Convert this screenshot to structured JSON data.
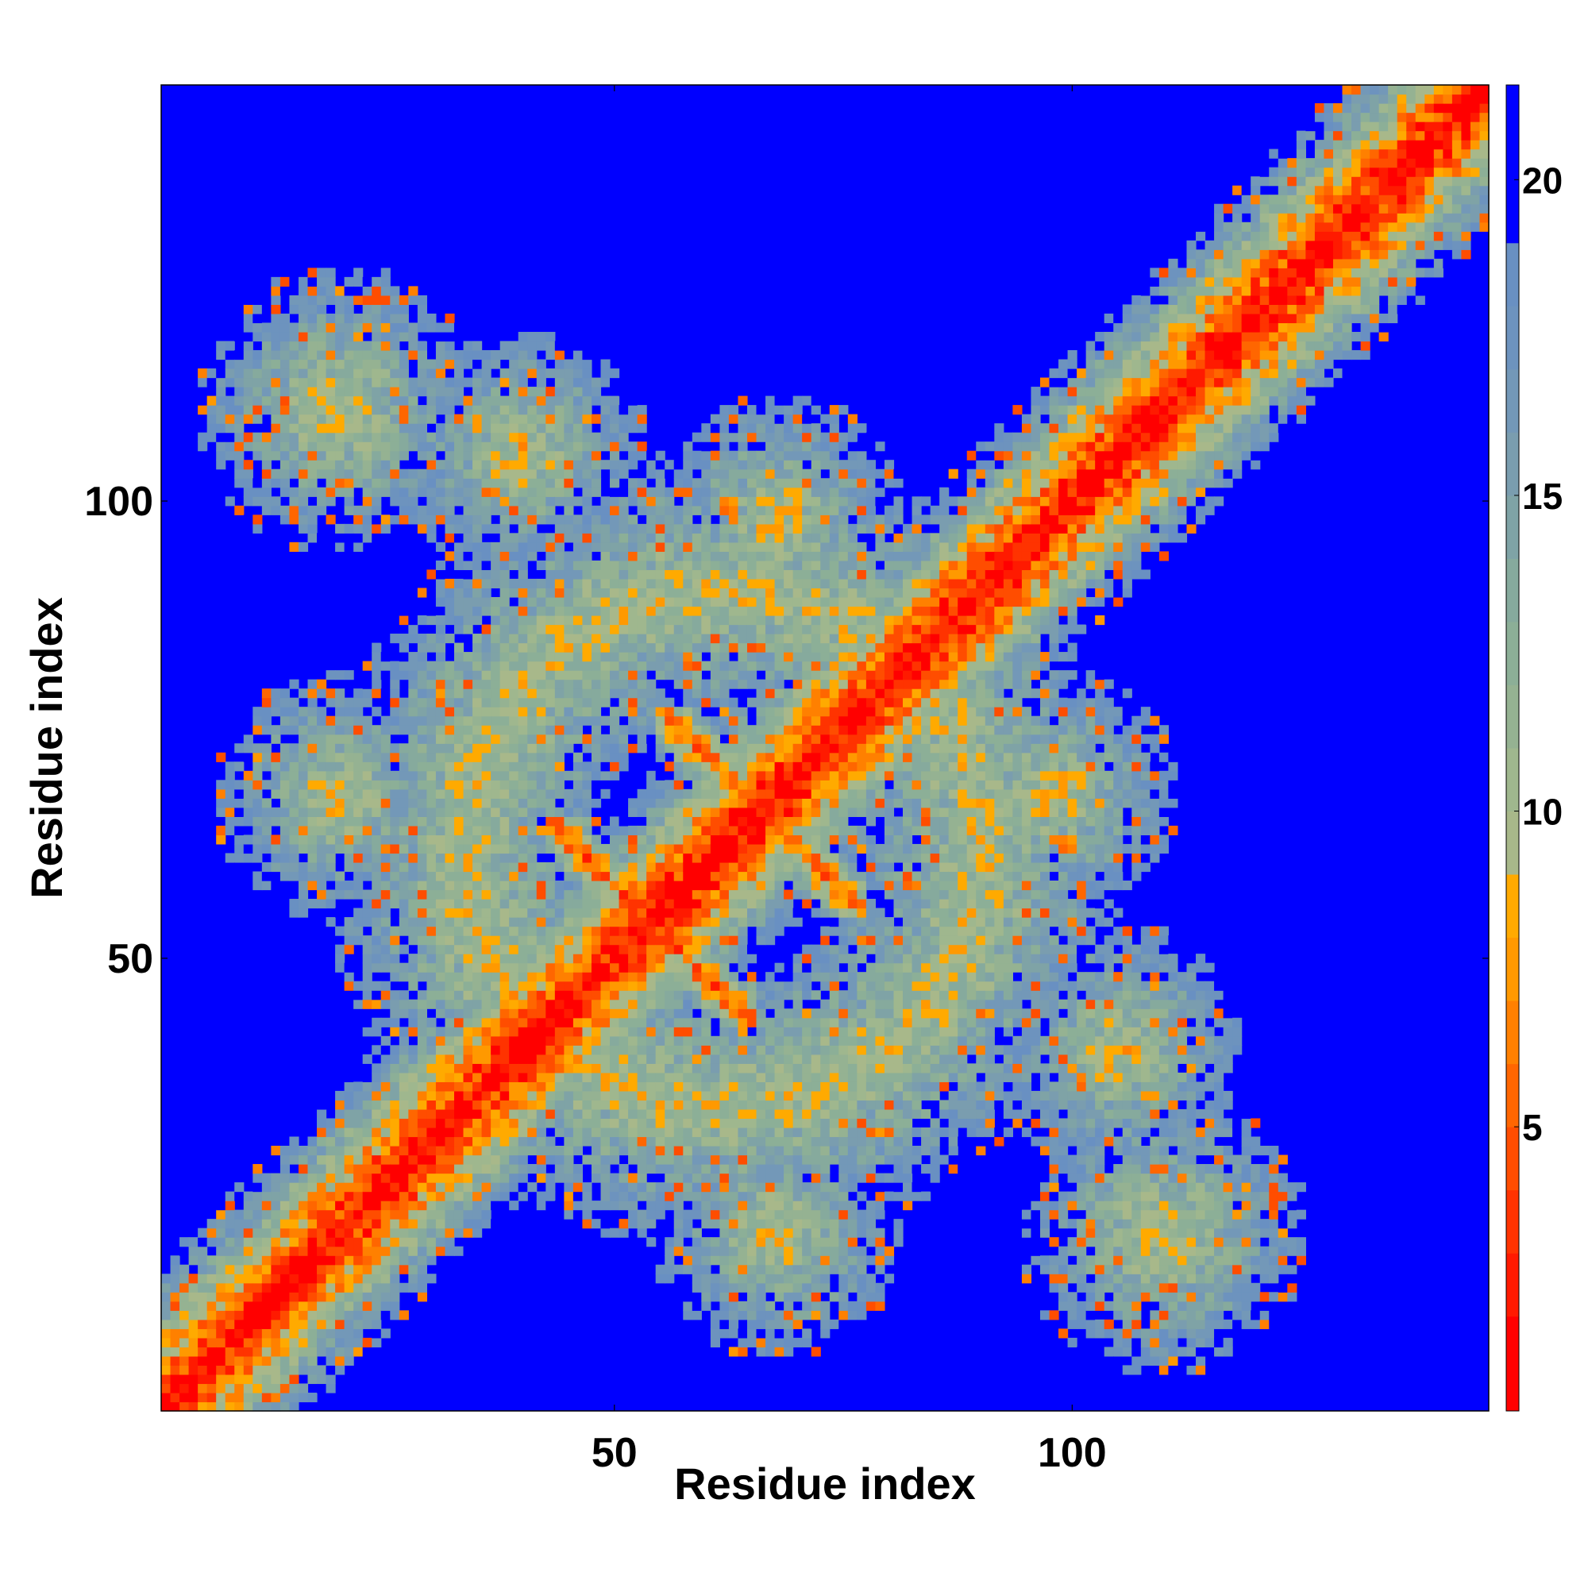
{
  "chart_data": {
    "type": "heatmap",
    "title": "",
    "xlabel": "Residue index",
    "ylabel": "Residue index",
    "xlim": [
      1,
      145
    ],
    "ylim": [
      1,
      145
    ],
    "x_ticks": [
      50,
      100
    ],
    "y_ticks": [
      50,
      100
    ],
    "colorbar": {
      "range": [
        0.5,
        21.5
      ],
      "ticks": [
        5,
        10,
        15,
        20
      ],
      "levels": [
        {
          "max": 2,
          "color": "#ff0000"
        },
        {
          "max": 3,
          "color": "#ff1a00"
        },
        {
          "max": 4,
          "color": "#ff3300"
        },
        {
          "max": 5,
          "color": "#ff4d00"
        },
        {
          "max": 6,
          "color": "#ff6600"
        },
        {
          "max": 7,
          "color": "#ff8000"
        },
        {
          "max": 8,
          "color": "#ff9900"
        },
        {
          "max": 9,
          "color": "#ffaa00"
        },
        {
          "max": 10,
          "color": "#a8b88a"
        },
        {
          "max": 11,
          "color": "#9fb78e"
        },
        {
          "max": 12,
          "color": "#95b292"
        },
        {
          "max": 13,
          "color": "#8caf97"
        },
        {
          "max": 14,
          "color": "#86aa9d"
        },
        {
          "max": 15,
          "color": "#7fa3a6"
        },
        {
          "max": 16,
          "color": "#7a9daf"
        },
        {
          "max": 17,
          "color": "#7398b8"
        },
        {
          "max": 18,
          "color": "#6d93be"
        },
        {
          "max": 19,
          "color": "#6990c2"
        },
        {
          "max": 20.5,
          "color": "#0000ff"
        },
        {
          "max": 21.5,
          "color": "#0000ff"
        }
      ]
    },
    "cutoff": 20,
    "description_of_values": "pairwise residue distances; symmetric contact-map",
    "features": [
      {
        "kind": "diagonal",
        "value_on_diagonal": 1
      },
      {
        "kind": "antidiagonal_band",
        "from": [
          45,
          63
        ],
        "to": [
          63,
          45
        ],
        "min_value": 5
      },
      {
        "kind": "antidiagonal_band",
        "from": [
          57,
          75
        ],
        "to": [
          75,
          57
        ],
        "min_value": 5
      },
      {
        "kind": "contact_cluster",
        "center": [
          18,
          18
        ],
        "radius": 12
      },
      {
        "kind": "contact_cluster",
        "center": [
          130,
          130
        ],
        "radius": 12
      },
      {
        "kind": "contact_cluster",
        "center": [
          20,
          110
        ],
        "radius": 16
      },
      {
        "kind": "contact_cluster",
        "center": [
          110,
          20
        ],
        "radius": 16
      },
      {
        "kind": "contact_cluster",
        "center": [
          68,
          98
        ],
        "radius": 14
      },
      {
        "kind": "contact_cluster",
        "center": [
          98,
          68
        ],
        "radius": 14
      },
      {
        "kind": "contact_cluster",
        "center": [
          20,
          68
        ],
        "radius": 14
      },
      {
        "kind": "contact_cluster",
        "center": [
          68,
          20
        ],
        "radius": 14
      },
      {
        "kind": "contact_cluster",
        "center": [
          105,
          40
        ],
        "radius": 14
      },
      {
        "kind": "contact_cluster",
        "center": [
          40,
          105
        ],
        "radius": 14
      }
    ]
  }
}
